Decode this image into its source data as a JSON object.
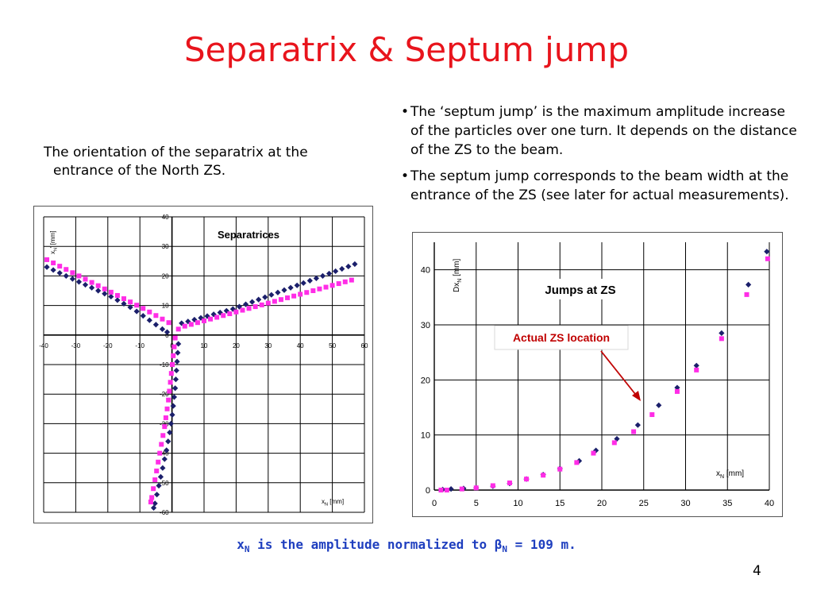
{
  "slide": {
    "title": "Separatrix & Septum jump",
    "caption": "The orientation of the separatrix at the entrance of the North ZS.",
    "bullets": [
      "The ‘septum jump’ is the maximum amplitude increase of the particles over one turn. It depends on the distance of the ZS to the beam.",
      "The septum jump corresponds to the beam width at the entrance of the ZS (see later for actual measurements)."
    ],
    "footnote": {
      "x": "x",
      "sub1": "N",
      "mid": " is the amplitude normalized to ",
      "beta": "β",
      "sub2": "N",
      "end": " = 109 m."
    },
    "page_number": "4"
  },
  "chart_data": [
    {
      "type": "scatter",
      "title": "Separatrices",
      "xlabel": "x_N [mm]",
      "ylabel": "x_N' [mm]",
      "xlim": [
        -40,
        60
      ],
      "ylim": [
        -60,
        40
      ],
      "xticks": [
        -40,
        -30,
        -20,
        -10,
        0,
        10,
        20,
        30,
        40,
        50,
        60
      ],
      "yticks": [
        40,
        30,
        20,
        10,
        0,
        -10,
        -20,
        -30,
        -40,
        -50,
        -60
      ],
      "grid": true,
      "series": [
        {
          "color": "#1b1f6b",
          "marker": "diamond",
          "points": [
            [
              -39,
              23
            ],
            [
              -37,
              22
            ],
            [
              -35,
              21
            ],
            [
              -33,
              20
            ],
            [
              -31,
              19
            ],
            [
              -29,
              18
            ],
            [
              -27,
              17
            ],
            [
              -25,
              16
            ],
            [
              -23,
              15
            ],
            [
              -21,
              14
            ],
            [
              -19,
              13
            ],
            [
              -17,
              11.8
            ],
            [
              -15,
              10.6
            ],
            [
              -13,
              9.4
            ],
            [
              -11,
              8
            ],
            [
              -9,
              6.5
            ],
            [
              -7,
              5
            ],
            [
              -5,
              3.5
            ],
            [
              -3,
              2
            ],
            [
              -1.5,
              1
            ],
            [
              3,
              4
            ],
            [
              5,
              4.6
            ],
            [
              7,
              5.2
            ],
            [
              9,
              5.8
            ],
            [
              11,
              6.4
            ],
            [
              13,
              7
            ],
            [
              15,
              7.6
            ],
            [
              17,
              8.2
            ],
            [
              19,
              8.8
            ],
            [
              21,
              9.6
            ],
            [
              23,
              10.4
            ],
            [
              25,
              11.2
            ],
            [
              27,
              12
            ],
            [
              29,
              12.8
            ],
            [
              31,
              13.6
            ],
            [
              33,
              14.4
            ],
            [
              35,
              15.2
            ],
            [
              37,
              16
            ],
            [
              39,
              16.8
            ],
            [
              41,
              17.6
            ],
            [
              43,
              18.4
            ],
            [
              45,
              19.2
            ],
            [
              47,
              20
            ],
            [
              49,
              20.8
            ],
            [
              51,
              21.6
            ],
            [
              53,
              22.4
            ],
            [
              55,
              23.2
            ],
            [
              57,
              24
            ],
            [
              2,
              -3
            ],
            [
              1.8,
              -6
            ],
            [
              1.6,
              -9
            ],
            [
              1.4,
              -12
            ],
            [
              1.2,
              -15
            ],
            [
              1,
              -18
            ],
            [
              0.7,
              -21
            ],
            [
              0.4,
              -24
            ],
            [
              0.1,
              -27
            ],
            [
              -0.3,
              -30
            ],
            [
              -0.7,
              -33
            ],
            [
              -1.2,
              -36
            ],
            [
              -1.7,
              -39
            ],
            [
              -2.3,
              -42
            ],
            [
              -2.9,
              -45
            ],
            [
              -3.5,
              -48
            ],
            [
              -4.1,
              -51
            ],
            [
              -4.7,
              -54
            ],
            [
              -5.3,
              -57
            ],
            [
              -5.7,
              -58.5
            ]
          ]
        },
        {
          "color": "#ff2de6",
          "marker": "square",
          "points": [
            [
              -39,
              25.5
            ],
            [
              -37,
              24.4
            ],
            [
              -35,
              23.3
            ],
            [
              -33,
              22.2
            ],
            [
              -31,
              21.1
            ],
            [
              -29,
              20
            ],
            [
              -27,
              18.9
            ],
            [
              -25,
              17.8
            ],
            [
              -23,
              16.7
            ],
            [
              -21,
              15.6
            ],
            [
              -19,
              14.5
            ],
            [
              -17,
              13.4
            ],
            [
              -15,
              12.3
            ],
            [
              -13,
              11.2
            ],
            [
              -11,
              10.1
            ],
            [
              -9,
              9
            ],
            [
              -7,
              7.8
            ],
            [
              -5,
              6.6
            ],
            [
              -3,
              5.4
            ],
            [
              -1,
              4.2
            ],
            [
              2,
              2
            ],
            [
              4,
              3
            ],
            [
              6,
              3.6
            ],
            [
              8,
              4.2
            ],
            [
              10,
              4.8
            ],
            [
              12,
              5.4
            ],
            [
              14,
              6
            ],
            [
              16,
              6.6
            ],
            [
              18,
              7.2
            ],
            [
              20,
              7.8
            ],
            [
              22,
              8.4
            ],
            [
              24,
              9
            ],
            [
              26,
              9.6
            ],
            [
              28,
              10.2
            ],
            [
              30,
              10.8
            ],
            [
              32,
              11.4
            ],
            [
              34,
              12
            ],
            [
              36,
              12.6
            ],
            [
              38,
              13.2
            ],
            [
              40,
              13.8
            ],
            [
              42,
              14.4
            ],
            [
              44,
              15
            ],
            [
              46,
              15.6
            ],
            [
              48,
              16.2
            ],
            [
              50,
              16.8
            ],
            [
              52,
              17.4
            ],
            [
              54,
              18
            ],
            [
              56,
              18.6
            ],
            [
              1,
              -1
            ],
            [
              0.7,
              -4
            ],
            [
              0.4,
              -7
            ],
            [
              0.1,
              -10
            ],
            [
              -0.2,
              -13
            ],
            [
              -0.5,
              -16
            ],
            [
              -0.8,
              -19
            ],
            [
              -1.1,
              -22
            ],
            [
              -1.5,
              -25
            ],
            [
              -1.9,
              -28
            ],
            [
              -2.3,
              -31
            ],
            [
              -2.8,
              -34
            ],
            [
              -3.3,
              -37
            ],
            [
              -3.8,
              -40
            ],
            [
              -4.3,
              -43
            ],
            [
              -4.8,
              -46
            ],
            [
              -5.3,
              -49
            ],
            [
              -5.8,
              -52
            ],
            [
              -6.3,
              -55
            ],
            [
              -6.6,
              -56.5
            ]
          ]
        }
      ]
    },
    {
      "type": "scatter",
      "title": "Jumps at ZS",
      "xlabel": "x_N [mm]",
      "ylabel": "Dx_N [mm]",
      "xlim": [
        0,
        40
      ],
      "ylim": [
        0,
        45
      ],
      "xticks": [
        0,
        5,
        10,
        15,
        20,
        25,
        30,
        35,
        40
      ],
      "yticks": [
        0,
        10,
        20,
        30,
        40
      ],
      "grid": true,
      "annotation": "Actual ZS location",
      "annotation_color": "#c00000",
      "series": [
        {
          "color": "#1b1f6b",
          "marker": "diamond",
          "points": [
            [
              1,
              0.1
            ],
            [
              2,
              0.2
            ],
            [
              3.5,
              0.3
            ],
            [
              5,
              0.4
            ],
            [
              7,
              0.7
            ],
            [
              9,
              1.2
            ],
            [
              11,
              2
            ],
            [
              13,
              2.8
            ],
            [
              15,
              3.9
            ],
            [
              17.3,
              5.3
            ],
            [
              19.3,
              7.2
            ],
            [
              21.8,
              9.3
            ],
            [
              24.3,
              11.8
            ],
            [
              26.8,
              15.4
            ],
            [
              29,
              18.6
            ],
            [
              31.3,
              22.6
            ],
            [
              34.3,
              28.5
            ],
            [
              37.5,
              37.3
            ],
            [
              39.7,
              43.3
            ]
          ]
        },
        {
          "color": "#ff2de6",
          "marker": "square",
          "points": [
            [
              0.8,
              0
            ],
            [
              1.5,
              0
            ],
            [
              3.3,
              0.2
            ],
            [
              5,
              0.4
            ],
            [
              7,
              0.8
            ],
            [
              9,
              1.3
            ],
            [
              11,
              2
            ],
            [
              13,
              2.7
            ],
            [
              15,
              3.8
            ],
            [
              17,
              5
            ],
            [
              19,
              6.7
            ],
            [
              21.5,
              8.6
            ],
            [
              23.8,
              10.6
            ],
            [
              26,
              13.7
            ],
            [
              29,
              17.9
            ],
            [
              31.3,
              21.8
            ],
            [
              34.3,
              27.5
            ],
            [
              37.3,
              35.5
            ],
            [
              39.8,
              42
            ]
          ]
        }
      ]
    }
  ]
}
